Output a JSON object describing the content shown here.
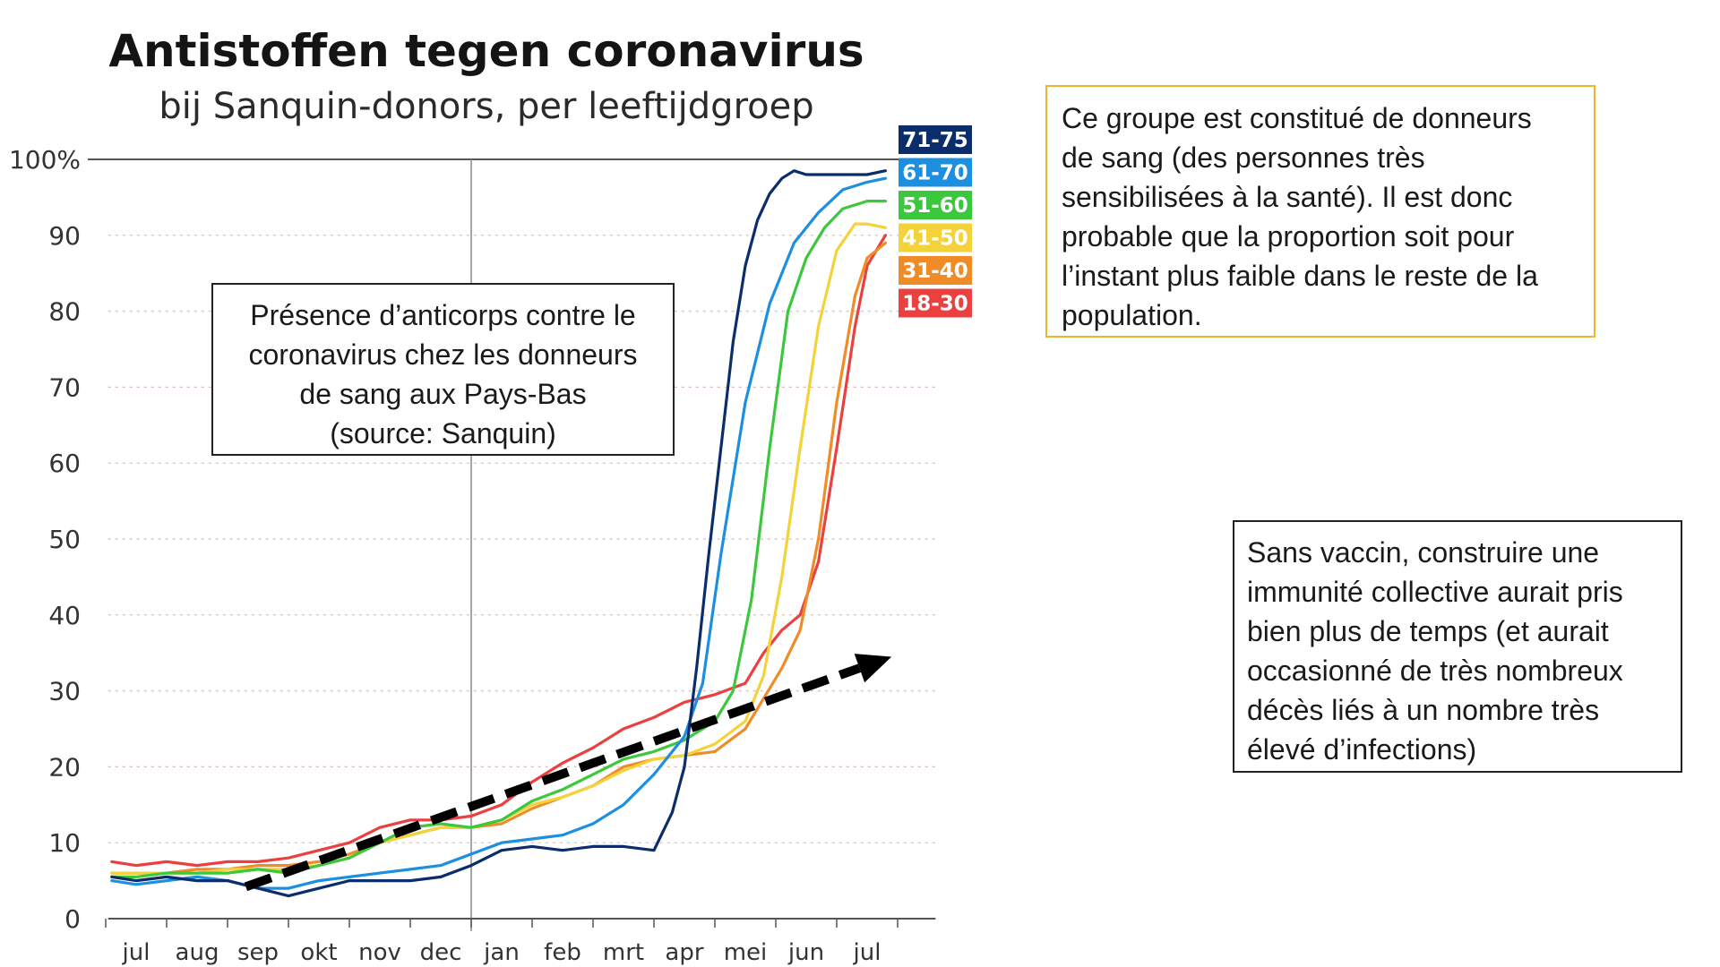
{
  "chart_data": {
    "type": "line",
    "title": "Antistoffen tegen coronavirus",
    "subtitle": "bij Sanquin-donors, per leeftijdgroep",
    "xlabel": "",
    "ylabel": "",
    "ylim": [
      0,
      100
    ],
    "yticks": [
      "0",
      "10",
      "20",
      "30",
      "40",
      "50",
      "60",
      "70",
      "80",
      "90",
      "100%"
    ],
    "ytick_values": [
      0,
      10,
      20,
      30,
      40,
      50,
      60,
      70,
      80,
      90,
      100
    ],
    "x_unit": "months since 1 jul (jul = 0)",
    "xlim": [
      -0.4,
      12.8
    ],
    "xticks": [
      "jul",
      "aug",
      "sep",
      "okt",
      "nov",
      "dec",
      "jan",
      "feb",
      "mrt",
      "apr",
      "mei",
      "jun",
      "jul"
    ],
    "grid": true,
    "legend_position": "right",
    "series": [
      {
        "name": "71-75",
        "color": "#0c2d6b",
        "x": [
          -0.4,
          0,
          0.5,
          1,
          1.5,
          2,
          2.5,
          3,
          3.5,
          4,
          4.5,
          5,
          5.5,
          6,
          6.5,
          7,
          7.5,
          8,
          8.5,
          8.8,
          9,
          9.2,
          9.4,
          9.6,
          9.8,
          10,
          10.2,
          10.4,
          10.6,
          10.8,
          11,
          11.2,
          11.4,
          11.6,
          12,
          12.3
        ],
        "y": [
          5.5,
          5,
          5.5,
          5,
          5,
          4,
          3,
          4,
          5,
          5,
          5,
          5.5,
          7,
          9,
          9.5,
          9,
          9.5,
          9.5,
          9,
          14,
          20,
          33,
          48,
          62,
          76,
          86,
          92,
          95.5,
          97.5,
          98.5,
          98,
          98,
          98,
          98,
          98,
          98.5
        ]
      },
      {
        "name": "61-70",
        "color": "#1c8fe0",
        "x": [
          -0.4,
          0,
          0.5,
          1,
          1.5,
          2,
          2.5,
          3,
          3.5,
          4,
          4.5,
          5,
          5.5,
          6,
          6.5,
          7,
          7.5,
          8,
          8.5,
          9,
          9.3,
          9.6,
          10,
          10.4,
          10.8,
          11.2,
          11.6,
          12,
          12.3
        ],
        "y": [
          5,
          4.5,
          5,
          5.5,
          5,
          4,
          4,
          5,
          5.5,
          6,
          6.5,
          7,
          8.5,
          10,
          10.5,
          11,
          12.5,
          15,
          19,
          24,
          31,
          48,
          68,
          81,
          89,
          93,
          96,
          97,
          97.5
        ]
      },
      {
        "name": "51-60",
        "color": "#3cc83c",
        "x": [
          -0.4,
          0,
          0.5,
          1,
          1.5,
          2,
          2.5,
          3,
          3.5,
          4,
          4.5,
          5,
          5.5,
          6,
          6.5,
          7,
          7.5,
          8,
          8.5,
          9,
          9.5,
          9.8,
          10.1,
          10.4,
          10.7,
          11,
          11.3,
          11.6,
          12,
          12.3
        ],
        "y": [
          5.5,
          5.5,
          6,
          6,
          6,
          6.5,
          6,
          7,
          8,
          10,
          12,
          12.5,
          12,
          13,
          15.5,
          17,
          19,
          21,
          22,
          23.5,
          26,
          30,
          42,
          62,
          80,
          87,
          91,
          93.5,
          94.5,
          94.5
        ]
      },
      {
        "name": "41-50",
        "color": "#f3d23a",
        "x": [
          -0.4,
          0,
          0.5,
          1,
          1.5,
          2,
          2.5,
          3,
          3.5,
          4,
          4.5,
          5,
          5.5,
          6,
          6.5,
          7,
          7.5,
          8,
          8.5,
          9,
          9.5,
          10,
          10.3,
          10.6,
          10.9,
          11.2,
          11.5,
          11.8,
          12,
          12.3
        ],
        "y": [
          6,
          6,
          6,
          6,
          6.5,
          6.5,
          6.5,
          7,
          8,
          10,
          11,
          12,
          12,
          13,
          15,
          16,
          17.5,
          19.5,
          21,
          21.5,
          23,
          26,
          32,
          45,
          62,
          78,
          88,
          91.5,
          91.5,
          91
        ]
      },
      {
        "name": "31-40",
        "color": "#f08c28",
        "x": [
          -0.4,
          0,
          0.5,
          1,
          1.5,
          2,
          2.5,
          3,
          3.5,
          4,
          4.5,
          5,
          5.5,
          6,
          6.5,
          7,
          7.5,
          8,
          8.5,
          9,
          9.5,
          10,
          10.3,
          10.6,
          10.9,
          11.2,
          11.5,
          11.8,
          12,
          12.3
        ],
        "y": [
          6,
          6,
          6,
          6.5,
          6.5,
          7,
          7,
          7.5,
          8.5,
          10,
          11,
          12,
          12,
          12.5,
          14.5,
          16,
          17.5,
          20,
          21,
          21.5,
          22,
          25,
          29,
          33,
          38,
          50,
          68,
          82,
          87,
          89
        ]
      },
      {
        "name": "18-30",
        "color": "#ea4040",
        "x": [
          -0.4,
          0,
          0.5,
          1,
          1.5,
          2,
          2.5,
          3,
          3.5,
          4,
          4.5,
          5,
          5.5,
          6,
          6.5,
          7,
          7.5,
          8,
          8.5,
          9,
          9.5,
          10,
          10.3,
          10.6,
          10.9,
          11.2,
          11.5,
          11.8,
          12,
          12.3
        ],
        "y": [
          7.5,
          7,
          7.5,
          7,
          7.5,
          7.5,
          8,
          9,
          10,
          12,
          13,
          13,
          13.5,
          15,
          18,
          20.5,
          22.5,
          25,
          26.5,
          28.5,
          29.5,
          31,
          35,
          38,
          40,
          47,
          62,
          78,
          86,
          90
        ]
      },
      {
        "name": "",
        "color": "#000000",
        "style": "dashed-arrow",
        "x": [
          1.8,
          12.4
        ],
        "y": [
          4.2,
          34.5
        ]
      }
    ],
    "legend_colors": [
      "#0c2d6b",
      "#1c8fe0",
      "#3cc83c",
      "#f3d23a",
      "#f08c28",
      "#ea4040"
    ]
  },
  "notes": {
    "left": [
      "Présence d’anticorps contre le",
      "coronavirus chez les donneurs",
      "de sang aux Pays-Bas",
      "(source: Sanquin)"
    ],
    "right_top": [
      "Ce groupe est constitué de donneurs",
      "de sang (des personnes très",
      "sensibilisées à la santé). Il est donc",
      "probable que la proportion soit pour",
      "l’instant plus faible dans le reste de la",
      "population."
    ],
    "right_bottom": [
      "Sans vaccin, construire une",
      "immunité collective aurait pris",
      "bien plus de temps (et aurait",
      "occasionné de très nombreux",
      "décès liés à un nombre très",
      "élevé d’infections)"
    ]
  }
}
